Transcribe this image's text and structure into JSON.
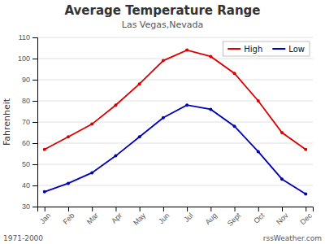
{
  "chart_data": {
    "type": "line",
    "title": "Average Temperature Range",
    "subtitle": "Las Vegas,Nevada",
    "ylabel": "Fahrenheit",
    "annotations": [
      "1971-2000",
      "rssWeather.com"
    ],
    "categories": [
      "Jan",
      "Feb",
      "Mar",
      "Apr",
      "May",
      "Jun",
      "Jul",
      "Aug",
      "Sept",
      "Oct",
      "Nov",
      "Dec"
    ],
    "series": [
      {
        "name": "High",
        "color": "#dd0000",
        "marker": "dot",
        "values": [
          57,
          63,
          69,
          78,
          88,
          99,
          104,
          101,
          93,
          80,
          65,
          57
        ]
      },
      {
        "name": "Low",
        "color": "#0000bb",
        "marker": "dot",
        "values": [
          37,
          41,
          46,
          54,
          63,
          72,
          78,
          76,
          68,
          56,
          43,
          36
        ]
      }
    ],
    "ylim": [
      30,
      110
    ],
    "yticks": [
      30,
      40,
      50,
      60,
      70,
      80,
      90,
      100,
      110
    ],
    "grid": true,
    "legend": "upper right"
  }
}
